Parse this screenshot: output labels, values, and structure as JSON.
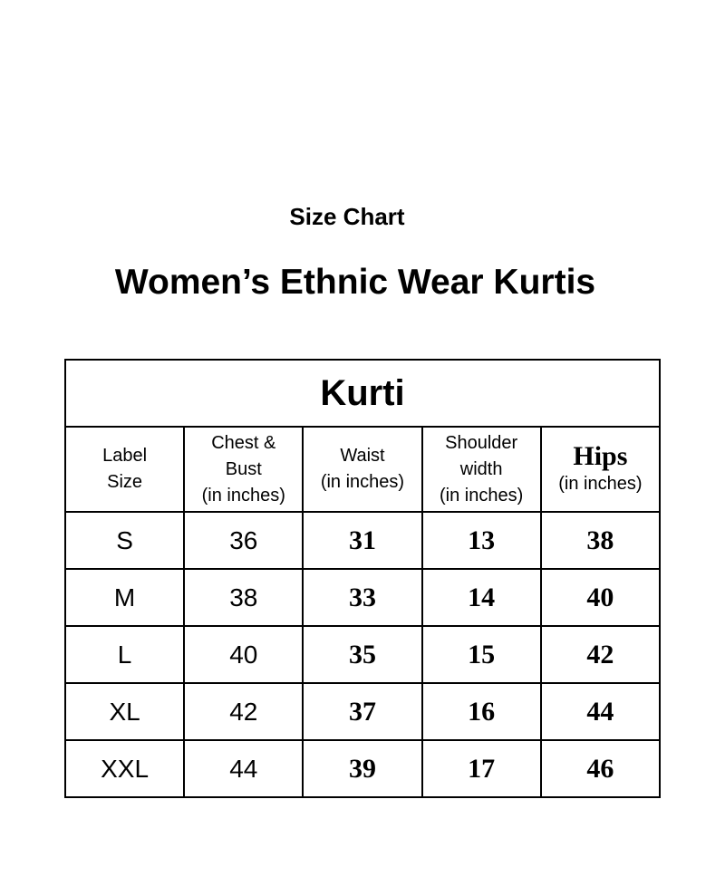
{
  "subtitle": "Size Chart",
  "title": "Women’s Ethnic Wear Kurtis",
  "table": {
    "caption": "Kurti",
    "headers": [
      {
        "lines": [
          "Label",
          "Size"
        ]
      },
      {
        "lines": [
          "Chest &",
          "Bust",
          "(in inches)"
        ]
      },
      {
        "lines": [
          "Waist",
          "(in inches)"
        ]
      },
      {
        "lines": [
          "Shoulder",
          "width",
          "(in inches)"
        ]
      },
      {
        "lines": [
          "Hips",
          "(in inches)"
        ]
      }
    ],
    "rows": [
      [
        "S",
        "36",
        "31",
        "13",
        "38"
      ],
      [
        "M",
        "38",
        "33",
        "14",
        "40"
      ],
      [
        "L",
        "40",
        "35",
        "15",
        "42"
      ],
      [
        "XL",
        "42",
        "37",
        "16",
        "44"
      ],
      [
        "XXL",
        "44",
        "39",
        "17",
        "46"
      ]
    ]
  }
}
